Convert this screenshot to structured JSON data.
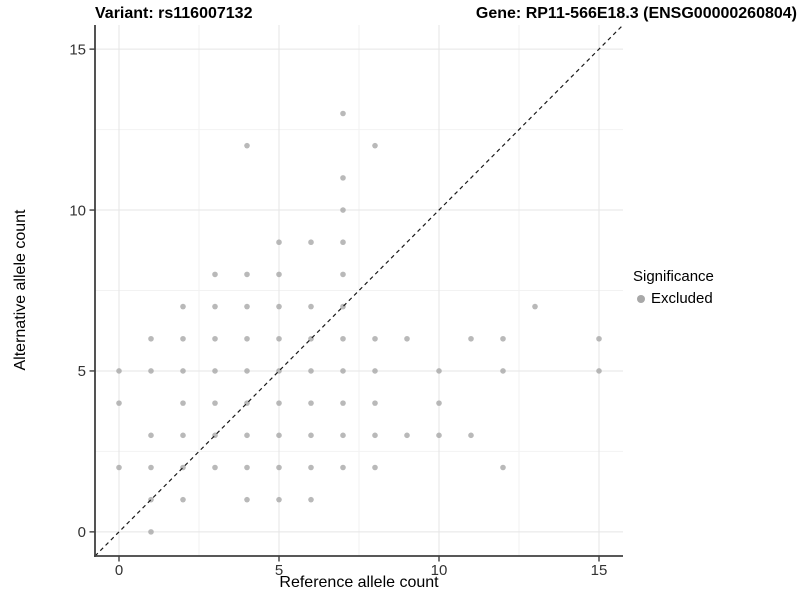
{
  "header": {
    "variant_title": "Variant: rs116007132",
    "gene_title": "Gene: RP11-566E18.3 (ENSG00000260804)"
  },
  "legend": {
    "title": "Significance",
    "items": [
      {
        "label": "Excluded",
        "color": "#a8a8a8"
      }
    ]
  },
  "colors": {
    "point": "#a8a8a8",
    "axis_line": "#404040",
    "major_grid": "#e5e5e5",
    "minor_grid": "#f2f2f2",
    "identity_line": "#1a1a1a",
    "tick_label": "#333333"
  },
  "chart_data": {
    "type": "scatter",
    "title": "Variant: rs116007132 | Gene: RP11-566E18.3 (ENSG00000260804)",
    "xlabel": "Reference allele count",
    "ylabel": "Alternative allele count",
    "xlim": [
      -0.75,
      15.75
    ],
    "ylim": [
      -0.75,
      15.75
    ],
    "x_ticks": [
      0,
      5,
      10,
      15
    ],
    "y_ticks": [
      0,
      5,
      10,
      15
    ],
    "x_minor_ticks": [
      2.5,
      7.5,
      12.5
    ],
    "y_minor_ticks": [
      2.5,
      7.5,
      12.5
    ],
    "grid": true,
    "legend_position": "right",
    "identity_line": {
      "style": "dashed",
      "from": [
        -0.75,
        -0.75
      ],
      "to": [
        15.75,
        15.75
      ]
    },
    "series": [
      {
        "name": "Excluded",
        "color": "#a8a8a8",
        "points": [
          [
            1,
            0
          ],
          [
            1,
            1
          ],
          [
            2,
            1
          ],
          [
            4,
            1
          ],
          [
            5,
            1
          ],
          [
            6,
            1
          ],
          [
            0,
            2
          ],
          [
            1,
            2
          ],
          [
            2,
            2
          ],
          [
            3,
            2
          ],
          [
            4,
            2
          ],
          [
            5,
            2
          ],
          [
            6,
            2
          ],
          [
            7,
            2
          ],
          [
            8,
            2
          ],
          [
            12,
            2
          ],
          [
            1,
            3
          ],
          [
            2,
            3
          ],
          [
            3,
            3
          ],
          [
            4,
            3
          ],
          [
            5,
            3
          ],
          [
            6,
            3
          ],
          [
            7,
            3
          ],
          [
            8,
            3
          ],
          [
            9,
            3
          ],
          [
            10,
            3
          ],
          [
            11,
            3
          ],
          [
            0,
            4
          ],
          [
            2,
            4
          ],
          [
            3,
            4
          ],
          [
            4,
            4
          ],
          [
            5,
            4
          ],
          [
            6,
            4
          ],
          [
            7,
            4
          ],
          [
            8,
            4
          ],
          [
            10,
            4
          ],
          [
            0,
            5
          ],
          [
            1,
            5
          ],
          [
            2,
            5
          ],
          [
            3,
            5
          ],
          [
            4,
            5
          ],
          [
            5,
            5
          ],
          [
            6,
            5
          ],
          [
            7,
            5
          ],
          [
            8,
            5
          ],
          [
            10,
            5
          ],
          [
            12,
            5
          ],
          [
            15,
            5
          ],
          [
            1,
            6
          ],
          [
            2,
            6
          ],
          [
            3,
            6
          ],
          [
            4,
            6
          ],
          [
            5,
            6
          ],
          [
            6,
            6
          ],
          [
            7,
            6
          ],
          [
            8,
            6
          ],
          [
            9,
            6
          ],
          [
            11,
            6
          ],
          [
            12,
            6
          ],
          [
            15,
            6
          ],
          [
            2,
            7
          ],
          [
            3,
            7
          ],
          [
            4,
            7
          ],
          [
            5,
            7
          ],
          [
            6,
            7
          ],
          [
            7,
            7
          ],
          [
            13,
            7
          ],
          [
            3,
            8
          ],
          [
            4,
            8
          ],
          [
            5,
            8
          ],
          [
            7,
            8
          ],
          [
            5,
            9
          ],
          [
            6,
            9
          ],
          [
            7,
            9
          ],
          [
            7,
            10
          ],
          [
            7,
            11
          ],
          [
            4,
            12
          ],
          [
            8,
            12
          ],
          [
            7,
            13
          ]
        ]
      }
    ]
  }
}
